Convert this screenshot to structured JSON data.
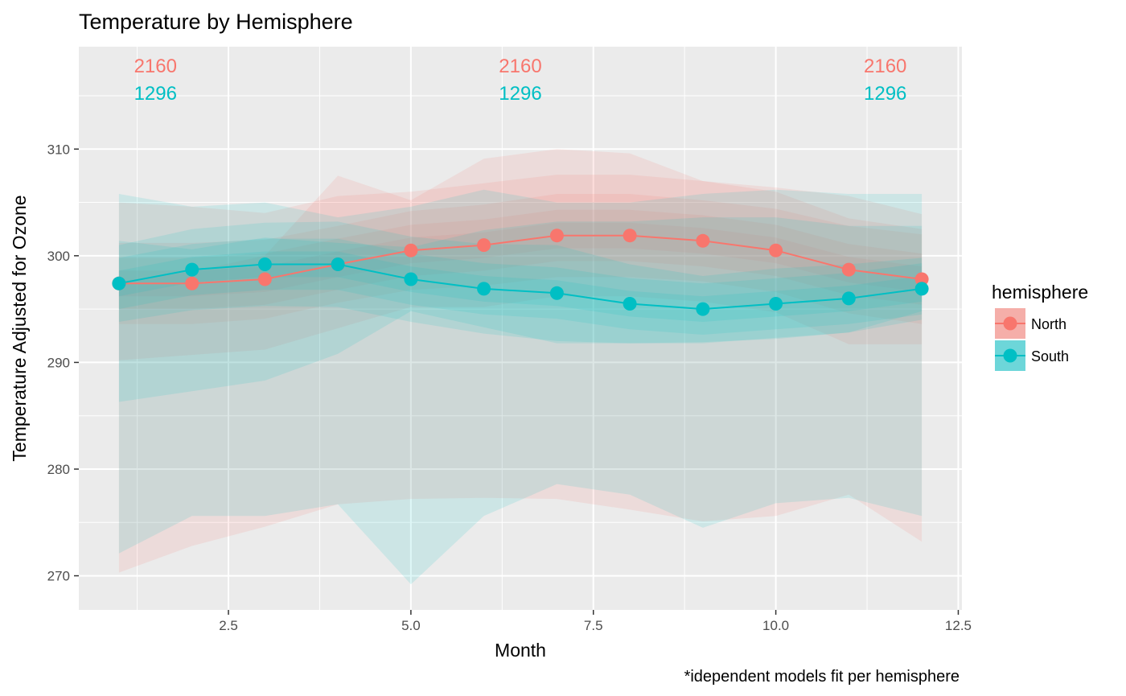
{
  "chart_data": {
    "type": "line",
    "title": "Temperature by Hemisphere",
    "xlabel": "Month",
    "ylabel": "Temperature Adjusted for Ozone",
    "caption": "*idependent models fit per hemisphere",
    "xlim": [
      0.45,
      12.55
    ],
    "ylim": [
      266.8,
      319.6
    ],
    "x_ticks": [
      2.5,
      5.0,
      7.5,
      10.0,
      12.5
    ],
    "x_tick_labels": [
      "2.5",
      "5.0",
      "7.5",
      "10.0",
      "12.5"
    ],
    "y_ticks": [
      270,
      280,
      290,
      300,
      310
    ],
    "y_tick_labels": [
      "270",
      "280",
      "290",
      "300",
      "310"
    ],
    "grid": true,
    "legend": {
      "title": "hemisphere",
      "position": "right"
    },
    "x": [
      1,
      2,
      3,
      4,
      5,
      6,
      7,
      8,
      9,
      10,
      11,
      12
    ],
    "series": [
      {
        "name": "North",
        "color": "#F8766D",
        "values": [
          297.4,
          297.4,
          297.8,
          299.2,
          300.5,
          301.0,
          301.9,
          301.9,
          301.4,
          300.5,
          298.7,
          297.8
        ],
        "bands": [
          {
            "lower": [
              296.2,
              296.2,
              296.6,
              298.0,
              299.3,
              299.8,
              300.7,
              300.7,
              300.2,
              299.3,
              297.5,
              296.6
            ],
            "upper": [
              298.6,
              298.6,
              299.0,
              300.4,
              301.7,
              302.2,
              303.1,
              303.1,
              302.6,
              301.7,
              299.9,
              299.0
            ]
          },
          {
            "lower": [
              295.0,
              295.0,
              295.4,
              296.8,
              298.1,
              298.6,
              299.5,
              299.5,
              299.0,
              298.1,
              296.3,
              295.4
            ],
            "upper": [
              299.8,
              299.8,
              300.2,
              301.6,
              302.9,
              303.4,
              304.3,
              304.3,
              303.8,
              302.9,
              301.1,
              300.2
            ]
          },
          {
            "lower": [
              293.6,
              293.6,
              294.1,
              295.6,
              296.8,
              297.2,
              298.0,
              298.0,
              297.6,
              296.6,
              294.6,
              293.6
            ],
            "upper": [
              301.2,
              301.2,
              301.5,
              302.8,
              304.2,
              304.8,
              305.8,
              305.8,
              305.2,
              304.4,
              302.8,
              302.0
            ]
          },
          {
            "lower": [
              290.2,
              290.7,
              291.2,
              293.2,
              295.2,
              295.2,
              296.2,
              296.2,
              295.7,
              294.7,
              291.7,
              291.7
            ],
            "upper": [
              305.0,
              304.6,
              304.0,
              305.6,
              306.0,
              306.8,
              307.6,
              307.6,
              307.0,
              306.4,
              305.6,
              303.9
            ]
          },
          {
            "lower": [
              270.3,
              272.8,
              274.6,
              276.7,
              277.2,
              277.3,
              277.2,
              276.2,
              275.1,
              275.6,
              277.6,
              273.2
            ],
            "upper": [
              297.6,
              298.5,
              300.0,
              307.5,
              305.2,
              309.1,
              310.0,
              309.6,
              307.0,
              306.0,
              303.5,
              302.5
            ]
          }
        ]
      },
      {
        "name": "South",
        "color": "#00BFC4",
        "values": [
          297.4,
          298.7,
          299.2,
          299.2,
          297.8,
          296.9,
          296.5,
          295.5,
          295.0,
          295.5,
          296.0,
          296.9
        ],
        "bands": [
          {
            "lower": [
              296.2,
              297.5,
              298.0,
              298.0,
              296.6,
              295.7,
              295.3,
              294.3,
              293.8,
              294.3,
              294.8,
              295.7
            ],
            "upper": [
              298.6,
              299.9,
              300.4,
              300.4,
              299.0,
              298.1,
              297.7,
              296.7,
              296.2,
              296.7,
              297.2,
              298.1
            ]
          },
          {
            "lower": [
              295.0,
              296.3,
              296.8,
              296.8,
              295.4,
              294.5,
              294.1,
              293.1,
              292.6,
              293.1,
              293.6,
              294.5
            ],
            "upper": [
              299.8,
              301.1,
              301.6,
              301.6,
              300.2,
              299.3,
              298.9,
              297.9,
              297.4,
              297.9,
              298.4,
              299.3
            ]
          },
          {
            "lower": [
              293.8,
              294.9,
              295.3,
              295.2,
              293.8,
              292.7,
              292.0,
              291.8,
              291.9,
              292.2,
              292.8,
              294.0
            ],
            "upper": [
              301.0,
              302.5,
              303.1,
              303.2,
              301.8,
              301.1,
              301.0,
              299.2,
              298.1,
              298.8,
              299.2,
              299.8
            ]
          },
          {
            "lower": [
              286.3,
              287.3,
              288.3,
              290.8,
              294.8,
              293.3,
              291.8,
              291.8,
              291.8,
              292.3,
              292.8,
              294.8
            ],
            "upper": [
              301.4,
              300.6,
              301.7,
              301.2,
              300.8,
              302.4,
              303.2,
              303.2,
              303.6,
              303.6,
              302.8,
              302.8
            ]
          },
          {
            "lower": [
              272.1,
              275.6,
              275.6,
              276.7,
              269.2,
              275.6,
              278.6,
              277.6,
              274.5,
              276.8,
              277.3,
              275.6
            ],
            "upper": [
              305.8,
              304.6,
              305.0,
              303.6,
              304.6,
              306.2,
              305.0,
              305.0,
              305.8,
              306.2,
              305.8,
              305.8
            ]
          }
        ]
      }
    ],
    "annotations": [
      {
        "x": 1.5,
        "north": "2160",
        "south": "1296"
      },
      {
        "x": 6.5,
        "north": "2160",
        "south": "1296"
      },
      {
        "x": 11.5,
        "north": "2160",
        "south": "1296"
      }
    ]
  }
}
